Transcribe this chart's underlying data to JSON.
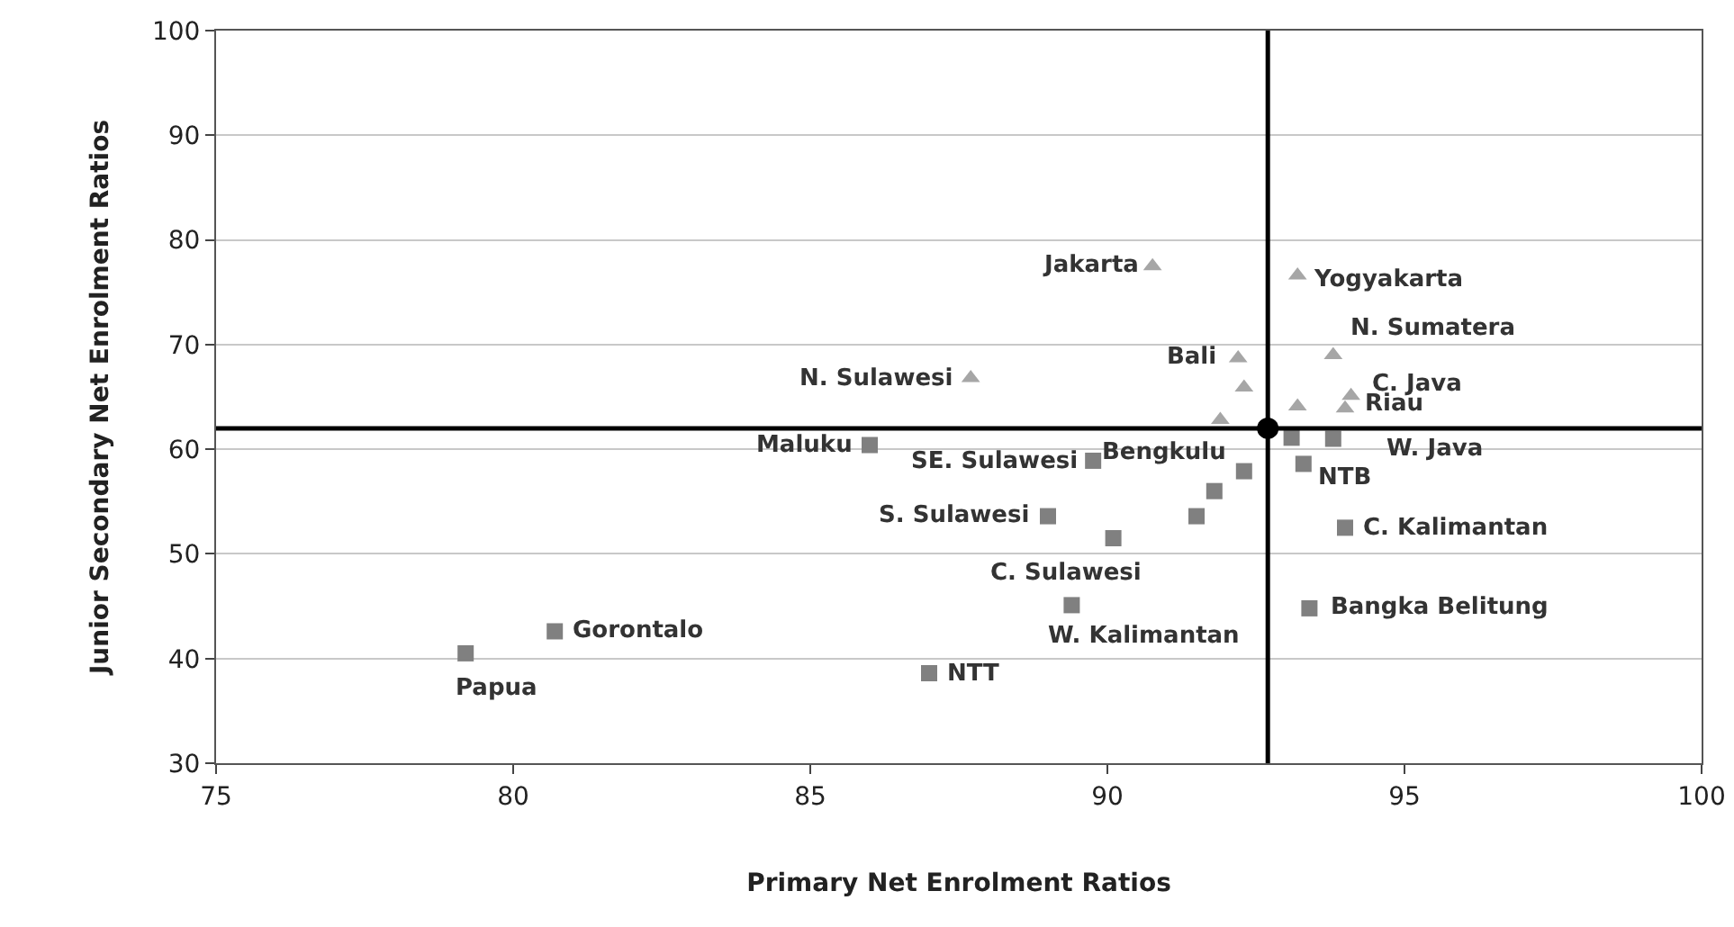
{
  "chart_data": {
    "type": "scatter",
    "xlabel": "Primary Net Enrolment Ratios",
    "ylabel": "Junior Secondary Net Enrolment Ratios",
    "xlim": [
      75,
      100
    ],
    "xticks": [
      75,
      80,
      85,
      90,
      95,
      100
    ],
    "ylim": [
      30,
      100
    ],
    "yticks": [
      30,
      40,
      50,
      60,
      70,
      80,
      90,
      100
    ],
    "grid": "y",
    "series": [
      {
        "color": "#a6a6a6",
        "marker": "triangle",
        "x": [
          90.76,
          93.2,
          87.7,
          92.2,
          92.3,
          91.9,
          93.8,
          93.2,
          94.1,
          94.0
        ],
        "values": [
          77.5,
          76.6,
          66.8,
          68.7,
          65.9,
          62.8,
          69.0,
          64.1,
          65.1,
          63.9
        ]
      },
      {
        "color": "#808080",
        "marker": "square",
        "x": [
          86.0,
          89.76,
          92.3,
          91.8,
          91.5,
          89.0,
          90.1,
          89.4,
          87.0,
          80.7,
          79.2,
          93.1,
          93.8,
          93.3,
          94.0,
          93.4
        ],
        "values": [
          60.4,
          58.9,
          57.9,
          56.0,
          53.6,
          53.6,
          51.5,
          45.1,
          38.6,
          42.6,
          40.5,
          61.1,
          61.0,
          58.6,
          52.5,
          44.8
        ]
      },
      {
        "color": "#000000",
        "marker": "circle",
        "x": [
          92.7
        ],
        "values": [
          62.0
        ]
      }
    ],
    "ref_lines": [
      {
        "axis": "x",
        "value": 92.7,
        "color": "#000000"
      },
      {
        "axis": "y",
        "value": 62.0,
        "color": "#000000"
      }
    ],
    "annotations": [
      {
        "text": "Jakarta",
        "x": 90.76,
        "y": 77.5
      },
      {
        "text": "Yogyakarta",
        "x": 93.2,
        "y": 76.6
      },
      {
        "text": "N. Sumatera",
        "x": 93.8,
        "y": 69.0
      },
      {
        "text": "N. Sulawesi",
        "x": 87.7,
        "y": 66.8
      },
      {
        "text": "Bali",
        "x": 92.2,
        "y": 68.7
      },
      {
        "text": "C. Java",
        "x": 94.1,
        "y": 65.1
      },
      {
        "text": "Riau",
        "x": 94.0,
        "y": 63.9
      },
      {
        "text": "W. Java",
        "x": 93.8,
        "y": 61.0
      },
      {
        "text": "Maluku",
        "x": 86.0,
        "y": 60.4
      },
      {
        "text": "SE. Sulawesi",
        "x": 89.76,
        "y": 58.9
      },
      {
        "text": "Bengkulu",
        "x": 92.3,
        "y": 57.9
      },
      {
        "text": "NTB",
        "x": 93.3,
        "y": 58.6
      },
      {
        "text": "S. Sulawesi",
        "x": 89.0,
        "y": 53.6
      },
      {
        "text": "C. Kalimantan",
        "x": 94.0,
        "y": 52.5
      },
      {
        "text": "C. Sulawesi",
        "x": 90.1,
        "y": 51.5
      },
      {
        "text": "Bangka Belitung",
        "x": 93.4,
        "y": 44.8
      },
      {
        "text": "W. Kalimantan",
        "x": 89.4,
        "y": 45.1
      },
      {
        "text": "Gorontalo",
        "x": 80.7,
        "y": 42.6
      },
      {
        "text": "Papua",
        "x": 79.2,
        "y": 40.5
      },
      {
        "text": "NTT",
        "x": 87.0,
        "y": 38.6
      }
    ]
  }
}
